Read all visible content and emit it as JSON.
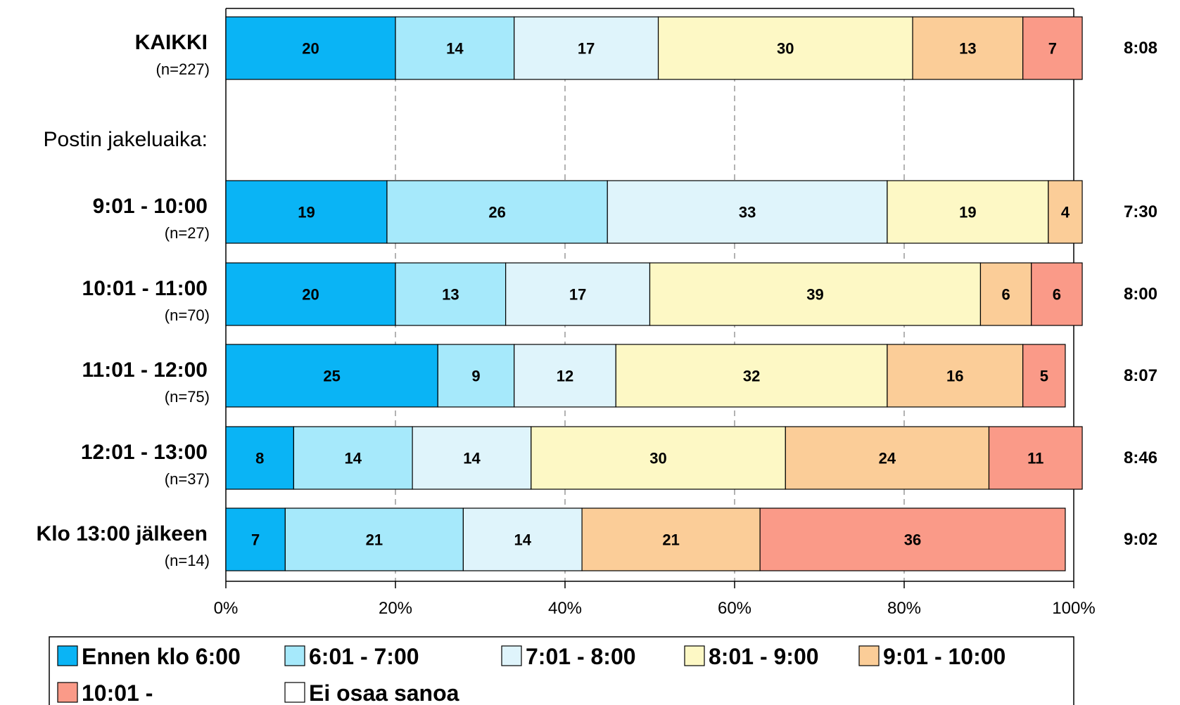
{
  "chart_data": {
    "type": "bar",
    "orientation": "horizontal",
    "stacked": true,
    "percent_stacked": true,
    "grid": "vertical dashed",
    "legend_position": "bottom",
    "xlim": [
      0,
      100
    ],
    "x_ticks": [
      "0%",
      "20%",
      "40%",
      "60%",
      "80%",
      "100%"
    ],
    "section_label": "Postin jakeluaika:",
    "series": [
      {
        "name": "Ennen klo 6:00",
        "color": "#0ab4f5"
      },
      {
        "name": "6:01 - 7:00",
        "color": "#a6e9fb"
      },
      {
        "name": "7:01 - 8:00",
        "color": "#dff4fb"
      },
      {
        "name": "8:01 - 9:00",
        "color": "#fdf8c5"
      },
      {
        "name": "9:01 - 10:00",
        "color": "#fbcd98"
      },
      {
        "name": "10:01 -",
        "color": "#fa9a88"
      },
      {
        "name": "Ei osaa sanoa",
        "color": "#ffffff"
      }
    ],
    "rows": [
      {
        "label": "KAIKKI",
        "n": "(n=227)",
        "values": [
          20,
          14,
          17,
          30,
          13,
          7,
          0
        ],
        "side_value": "8:08"
      },
      {
        "label": "9:01 - 10:00",
        "n": "(n=27)",
        "values": [
          19,
          26,
          33,
          19,
          4,
          0,
          0
        ],
        "side_value": "7:30"
      },
      {
        "label": "10:01 - 11:00",
        "n": "(n=70)",
        "values": [
          20,
          13,
          17,
          39,
          6,
          6,
          0
        ],
        "side_value": "8:00"
      },
      {
        "label": "11:01 - 12:00",
        "n": "(n=75)",
        "values": [
          25,
          9,
          12,
          32,
          16,
          5,
          0
        ],
        "side_value": "8:07"
      },
      {
        "label": "12:01 - 13:00",
        "n": "(n=37)",
        "values": [
          8,
          14,
          14,
          30,
          24,
          11,
          0
        ],
        "side_value": "8:46"
      },
      {
        "label": "Klo 13:00 jälkeen",
        "n": "(n=14)",
        "values": [
          7,
          21,
          14,
          0,
          21,
          36,
          0
        ],
        "side_value": "9:02"
      }
    ]
  }
}
